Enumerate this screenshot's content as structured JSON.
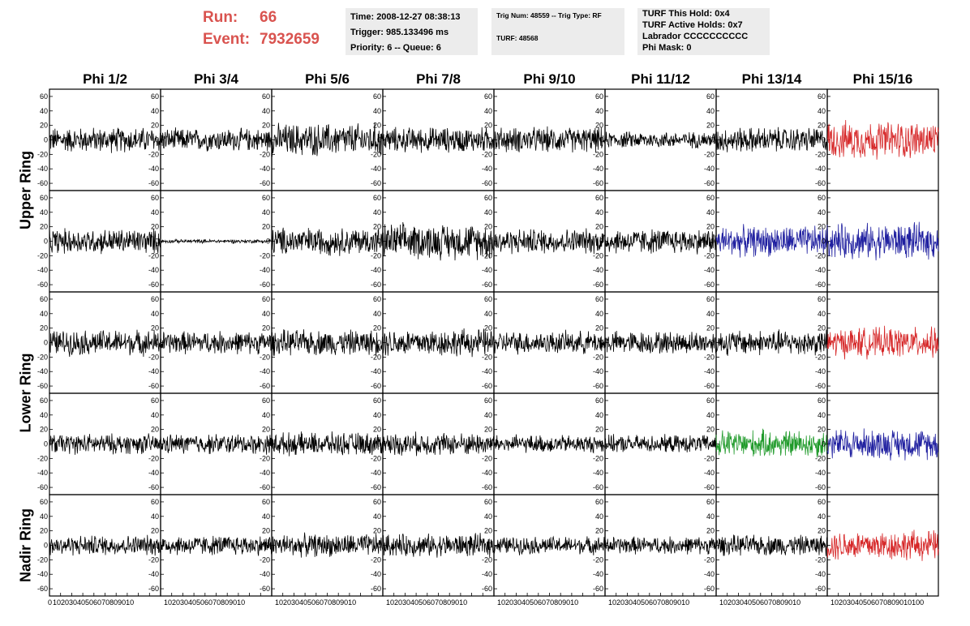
{
  "header": {
    "run_label": "Run:",
    "run_value": "66",
    "event_label": "Event:",
    "event_value": "7932659"
  },
  "info_boxes": {
    "time": "Time: 2008-12-27 08:38:13",
    "trigger": "Trigger: 985.133496 ms",
    "priority": "Priority: 6 -- Queue: 6",
    "trig_num": "Trig Num: 48559 -- Trig Type: RF",
    "turf": "TURF: 48568",
    "turf_this_hold": "TURF This Hold: 0x4",
    "turf_active_holds": "TURF Active Holds: 0x7",
    "labrador": "Labrador CCCCCCCCCC",
    "phi_mask": "Phi Mask: 0"
  },
  "colors": {
    "run_event": "#d9534f",
    "info_bg": "#ececec",
    "trace_default": "#000000",
    "trace_red": "#d62728",
    "trace_blue": "#2020a0",
    "trace_green": "#1f9a2a"
  },
  "chart_data": {
    "type": "line",
    "columns": [
      "Phi 1/2",
      "Phi 3/4",
      "Phi 5/6",
      "Phi 7/8",
      "Phi 9/10",
      "Phi 11/12",
      "Phi 13/14",
      "Phi 15/16"
    ],
    "row_groups": [
      {
        "label": "Upper Ring",
        "rows": [
          0,
          1
        ]
      },
      {
        "label": "Lower Ring",
        "rows": [
          2,
          3
        ]
      },
      {
        "label": "Nadir Ring",
        "rows": [
          4
        ]
      }
    ],
    "ylim": [
      -70,
      70
    ],
    "xlim": [
      0,
      100
    ],
    "y_ticks": [
      -60,
      -40,
      -20,
      0,
      20,
      40,
      60
    ],
    "x_ticks": [
      0,
      10,
      20,
      30,
      40,
      50,
      60,
      70,
      80,
      90,
      100
    ],
    "x_tick_label_text": [
      "0",
      "10203040506070809010",
      "10203040506070809010",
      "10203040506070809010",
      "10203040506070809010",
      "10203040506070809010",
      "10203040506070809010",
      "10203040506070809010",
      "10203040506070809010100"
    ],
    "panel_amplitudes": [
      [
        20,
        18,
        26,
        20,
        20,
        13,
        20,
        30
      ],
      [
        20,
        3,
        22,
        28,
        20,
        20,
        24,
        28
      ],
      [
        20,
        18,
        20,
        22,
        18,
        18,
        20,
        24
      ],
      [
        16,
        16,
        18,
        18,
        14,
        14,
        22,
        24
      ],
      [
        16,
        16,
        18,
        18,
        14,
        14,
        16,
        24
      ]
    ],
    "panel_colors": [
      [
        "trace_default",
        "trace_default",
        "trace_default",
        "trace_default",
        "trace_default",
        "trace_default",
        "trace_default",
        "trace_red"
      ],
      [
        "trace_default",
        "trace_default",
        "trace_default",
        "trace_default",
        "trace_default",
        "trace_default",
        "trace_blue",
        "trace_blue"
      ],
      [
        "trace_default",
        "trace_default",
        "trace_default",
        "trace_default",
        "trace_default",
        "trace_default",
        "trace_default",
        "trace_red"
      ],
      [
        "trace_default",
        "trace_default",
        "trace_default",
        "trace_default",
        "trace_default",
        "trace_default",
        "trace_green",
        "trace_blue"
      ],
      [
        "trace_default",
        "trace_default",
        "trace_default",
        "trace_default",
        "trace_default",
        "trace_default",
        "trace_default",
        "trace_red"
      ]
    ]
  }
}
